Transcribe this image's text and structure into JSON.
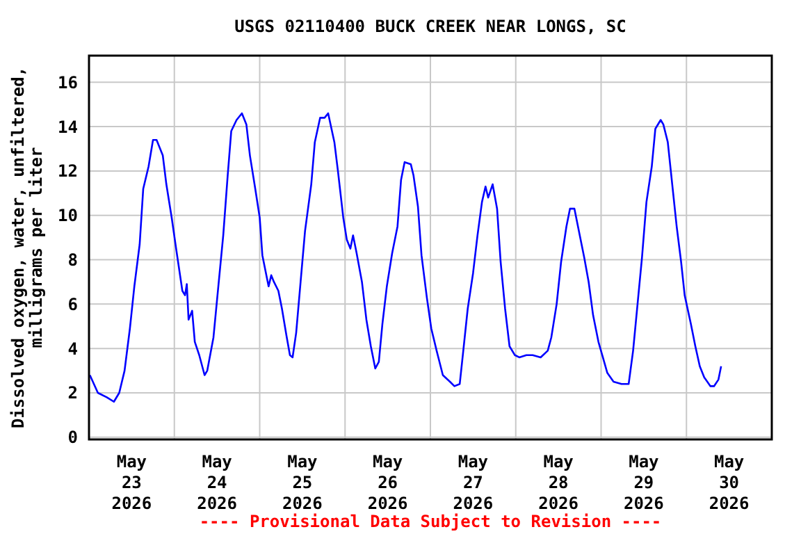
{
  "chart_data": {
    "type": "line",
    "title": "USGS 02110400 BUCK CREEK NEAR LONGS, SC",
    "ylabel": "Dissolved oxygen, water, unfiltered,\nmilligrams per liter",
    "annotations": [
      "---- Provisional Data Subject to Revision ----"
    ],
    "xlim": [
      "2026-05-23T00:00",
      "2026-05-31T00:00"
    ],
    "xticks": [
      {
        "value": "2026-05-23T12:00",
        "label": "May 23 2026"
      },
      {
        "value": "2026-05-24T12:00",
        "label": "May 24 2026"
      },
      {
        "value": "2026-05-25T12:00",
        "label": "May 25 2026"
      },
      {
        "value": "2026-05-26T12:00",
        "label": "May 26 2026"
      },
      {
        "value": "2026-05-27T12:00",
        "label": "May 27 2026"
      },
      {
        "value": "2026-05-28T12:00",
        "label": "May 28 2026"
      },
      {
        "value": "2026-05-29T12:00",
        "label": "May 29 2026"
      },
      {
        "value": "2026-05-30T12:00",
        "label": "May 30 2026"
      },
      {
        "value": "2026-05-24T00:00",
        "label": null
      },
      {
        "value": "2026-05-25T00:00",
        "label": null
      },
      {
        "value": "2026-05-26T00:00",
        "label": null
      },
      {
        "value": "2026-05-27T00:00",
        "label": null
      },
      {
        "value": "2026-05-28T00:00",
        "label": null
      },
      {
        "value": "2026-05-29T00:00",
        "label": null
      },
      {
        "value": "2026-05-30T00:00",
        "label": null
      }
    ],
    "ylim": [
      -0.1,
      17.2
    ],
    "yticks": [
      0,
      2,
      4,
      6,
      8,
      10,
      12,
      14,
      16
    ],
    "grid": true,
    "marker": "none",
    "line_style": "solid",
    "x": [
      "2026-05-23T00:15",
      "2026-05-23T02:30",
      "2026-05-23T05:00",
      "2026-05-23T07:00",
      "2026-05-23T08:30",
      "2026-05-23T10:00",
      "2026-05-23T11:30",
      "2026-05-23T12:45",
      "2026-05-23T14:15",
      "2026-05-23T15:15",
      "2026-05-23T16:45",
      "2026-05-23T18:00",
      "2026-05-23T19:00",
      "2026-05-23T20:45",
      "2026-05-23T21:45",
      "2026-05-23T23:15",
      "2026-05-24T00:30",
      "2026-05-24T02:15",
      "2026-05-24T03:00",
      "2026-05-24T03:30",
      "2026-05-24T04:00",
      "2026-05-24T05:00",
      "2026-05-24T05:45",
      "2026-05-24T07:00",
      "2026-05-24T08:30",
      "2026-05-24T09:15",
      "2026-05-24T11:00",
      "2026-05-24T12:15",
      "2026-05-24T13:45",
      "2026-05-24T15:00",
      "2026-05-24T16:00",
      "2026-05-24T17:30",
      "2026-05-24T19:00",
      "2026-05-24T20:15",
      "2026-05-24T21:15",
      "2026-05-24T22:45",
      "2026-05-25T00:00",
      "2026-05-25T00:45",
      "2026-05-25T02:30",
      "2026-05-25T03:15",
      "2026-05-25T04:00",
      "2026-05-25T05:15",
      "2026-05-25T06:15",
      "2026-05-25T07:30",
      "2026-05-25T08:30",
      "2026-05-25T09:15",
      "2026-05-25T10:15",
      "2026-05-25T11:30",
      "2026-05-25T12:45",
      "2026-05-25T14:30",
      "2026-05-25T15:30",
      "2026-05-25T17:00",
      "2026-05-25T18:15",
      "2026-05-25T19:15",
      "2026-05-25T21:00",
      "2026-05-25T22:00",
      "2026-05-25T23:30",
      "2026-05-26T00:30",
      "2026-05-26T01:30",
      "2026-05-26T02:15",
      "2026-05-26T03:15",
      "2026-05-26T04:45",
      "2026-05-26T06:00",
      "2026-05-26T07:15",
      "2026-05-26T08:30",
      "2026-05-26T09:30",
      "2026-05-26T10:30",
      "2026-05-26T11:45",
      "2026-05-26T13:15",
      "2026-05-26T14:45",
      "2026-05-26T15:45",
      "2026-05-26T16:45",
      "2026-05-26T18:30",
      "2026-05-26T19:15",
      "2026-05-26T20:30",
      "2026-05-26T21:30",
      "2026-05-26T23:00",
      "2026-05-27T00:15",
      "2026-05-27T01:45",
      "2026-05-27T03:30",
      "2026-05-27T05:30",
      "2026-05-27T06:45",
      "2026-05-27T08:15",
      "2026-05-27T09:15",
      "2026-05-27T10:30",
      "2026-05-27T12:00",
      "2026-05-27T13:15",
      "2026-05-27T14:30",
      "2026-05-27T15:30",
      "2026-05-27T16:15",
      "2026-05-27T17:30",
      "2026-05-27T18:45",
      "2026-05-27T19:45",
      "2026-05-27T21:00",
      "2026-05-27T22:15",
      "2026-05-27T23:45",
      "2026-05-28T01:00",
      "2026-05-28T03:00",
      "2026-05-28T04:45",
      "2026-05-28T07:00",
      "2026-05-28T09:00",
      "2026-05-28T10:00",
      "2026-05-28T11:30",
      "2026-05-28T12:45",
      "2026-05-28T14:15",
      "2026-05-28T15:15",
      "2026-05-28T16:30",
      "2026-05-28T18:00",
      "2026-05-28T19:15",
      "2026-05-28T20:30",
      "2026-05-28T21:45",
      "2026-05-28T23:15",
      "2026-05-29T00:30",
      "2026-05-29T01:45",
      "2026-05-29T03:30",
      "2026-05-29T05:45",
      "2026-05-29T07:45",
      "2026-05-29T09:00",
      "2026-05-29T10:15",
      "2026-05-29T11:30",
      "2026-05-29T12:45",
      "2026-05-29T14:15",
      "2026-05-29T15:15",
      "2026-05-29T16:45",
      "2026-05-29T17:30",
      "2026-05-29T18:45",
      "2026-05-29T20:00",
      "2026-05-29T21:15",
      "2026-05-29T22:30",
      "2026-05-29T23:30",
      "2026-05-30T01:15",
      "2026-05-30T02:30",
      "2026-05-30T03:45",
      "2026-05-30T05:00",
      "2026-05-30T06:45",
      "2026-05-30T07:45",
      "2026-05-30T09:00",
      "2026-05-30T09:45"
    ],
    "series": [
      {
        "color": "#0000ff",
        "values": [
          2.8,
          2.0,
          1.8,
          1.6,
          2.0,
          3.0,
          4.9,
          6.8,
          8.7,
          11.2,
          12.2,
          13.4,
          13.4,
          12.7,
          11.4,
          9.9,
          8.5,
          6.6,
          6.4,
          6.9,
          5.3,
          5.7,
          4.3,
          3.7,
          2.8,
          3.0,
          4.5,
          6.6,
          9.1,
          11.8,
          13.8,
          14.3,
          14.6,
          14.1,
          12.7,
          11.2,
          9.9,
          8.2,
          6.8,
          7.3,
          7.0,
          6.6,
          5.8,
          4.6,
          3.7,
          3.6,
          4.7,
          7.0,
          9.3,
          11.4,
          13.3,
          14.4,
          14.4,
          14.6,
          13.3,
          12.0,
          9.9,
          8.9,
          8.5,
          9.1,
          8.3,
          7.0,
          5.3,
          4.1,
          3.1,
          3.4,
          5.1,
          6.8,
          8.3,
          9.5,
          11.6,
          12.4,
          12.3,
          11.8,
          10.4,
          8.2,
          6.3,
          4.9,
          3.9,
          2.8,
          2.5,
          2.3,
          2.4,
          3.9,
          5.8,
          7.4,
          9.1,
          10.6,
          11.3,
          10.8,
          11.4,
          10.3,
          7.9,
          5.8,
          4.1,
          3.7,
          3.6,
          3.7,
          3.7,
          3.6,
          3.9,
          4.5,
          6.0,
          7.9,
          9.5,
          10.3,
          10.3,
          9.1,
          8.1,
          7.0,
          5.5,
          4.3,
          3.6,
          2.9,
          2.5,
          2.4,
          2.4,
          3.9,
          6.0,
          8.1,
          10.6,
          12.2,
          13.9,
          14.3,
          14.1,
          13.3,
          11.4,
          9.5,
          7.9,
          6.4,
          5.1,
          4.1,
          3.2,
          2.7,
          2.3,
          2.3,
          2.6,
          3.2
        ]
      }
    ]
  }
}
